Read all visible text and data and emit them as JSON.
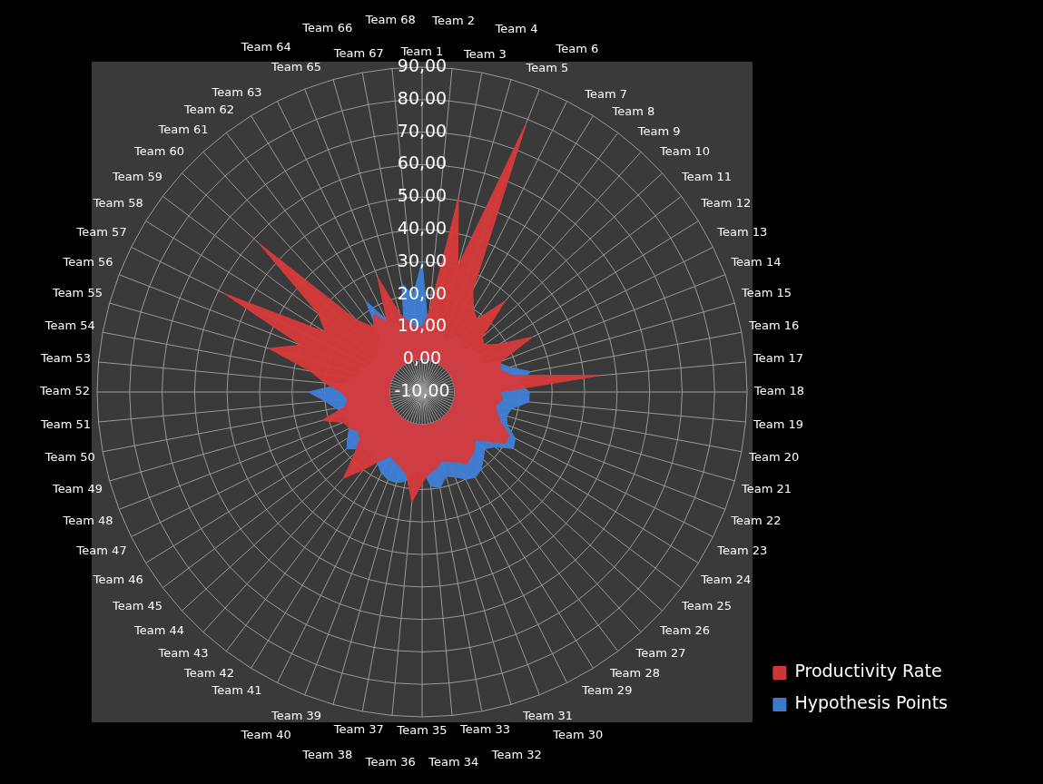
{
  "chart_data": {
    "type": "radar",
    "categories": [
      "Team 1",
      "Team 2",
      "Team 3",
      "Team 4",
      "Team 5",
      "Team 6",
      "Team 7",
      "Team 8",
      "Team 9",
      "Team 10",
      "Team 11",
      "Team 12",
      "Team 13",
      "Team 14",
      "Team 15",
      "Team 16",
      "Team 17",
      "Team 18",
      "Team 19",
      "Team 20",
      "Team 21",
      "Team 22",
      "Team 23",
      "Team 24",
      "Team 25",
      "Team 26",
      "Team 27",
      "Team 28",
      "Team 29",
      "Team 30",
      "Team 31",
      "Team 32",
      "Team 33",
      "Team 34",
      "Team 35",
      "Team 36",
      "Team 37",
      "Team 38",
      "Team 39",
      "Team 40",
      "Team 41",
      "Team 42",
      "Team 43",
      "Team 44",
      "Team 45",
      "Team 46",
      "Team 47",
      "Team 48",
      "Team 49",
      "Team 50",
      "Team 51",
      "Team 52",
      "Team 53",
      "Team 54",
      "Team 55",
      "Team 56",
      "Team 57",
      "Team 58",
      "Team 59",
      "Team 60",
      "Team 61",
      "Team 62",
      "Team 63",
      "Team 64",
      "Team 65",
      "Team 66",
      "Team 67",
      "Team 68"
    ],
    "series": [
      {
        "name": "Hypothesis Points",
        "color": "#3f7fd6",
        "values": [
          30,
          10,
          8,
          10,
          8,
          8,
          10,
          10,
          8,
          10,
          10,
          12,
          10,
          15,
          18,
          24,
          20,
          23,
          23,
          18,
          17,
          18,
          22,
          23,
          18,
          16,
          18,
          20,
          21,
          20,
          18,
          17,
          20,
          19,
          14,
          15,
          18,
          19,
          19,
          18,
          16,
          15,
          14,
          16,
          19,
          17,
          15,
          14,
          15,
          17,
          20,
          25,
          15,
          12,
          10,
          10,
          8,
          8,
          8,
          8,
          10,
          12,
          23,
          15,
          12,
          10,
          24,
          20
        ]
      },
      {
        "name": "Productivity Rate",
        "color": "#d63a3a",
        "values": [
          10,
          15,
          51,
          30,
          79,
          25,
          20,
          18,
          28,
          15,
          14,
          18,
          28,
          16,
          15,
          18,
          45,
          14,
          15,
          13,
          14,
          16,
          20,
          20,
          15,
          12,
          14,
          15,
          16,
          14,
          13,
          12,
          14,
          15,
          18,
          24,
          16,
          14,
          13,
          12,
          15,
          20,
          26,
          18,
          14,
          13,
          15,
          16,
          22,
          14,
          13,
          15,
          20,
          25,
          39,
          30,
          58,
          25,
          30,
          58,
          20,
          15,
          18,
          14,
          28,
          15,
          12,
          10
        ]
      }
    ],
    "ylim": [
      -10,
      90
    ],
    "yticks": [
      {
        "value": -10,
        "label": "-10,00"
      },
      {
        "value": 0,
        "label": "0,00"
      },
      {
        "value": 10,
        "label": "10,00"
      },
      {
        "value": 20,
        "label": "20,00"
      },
      {
        "value": 30,
        "label": "30,00"
      },
      {
        "value": 40,
        "label": "40,00"
      },
      {
        "value": 50,
        "label": "50,00"
      },
      {
        "value": 60,
        "label": "60,00"
      },
      {
        "value": 70,
        "label": "70,00"
      },
      {
        "value": 80,
        "label": "80,00"
      },
      {
        "value": 90,
        "label": "90,00"
      }
    ],
    "grid": true,
    "legend": "bottom right",
    "marker": "none"
  }
}
